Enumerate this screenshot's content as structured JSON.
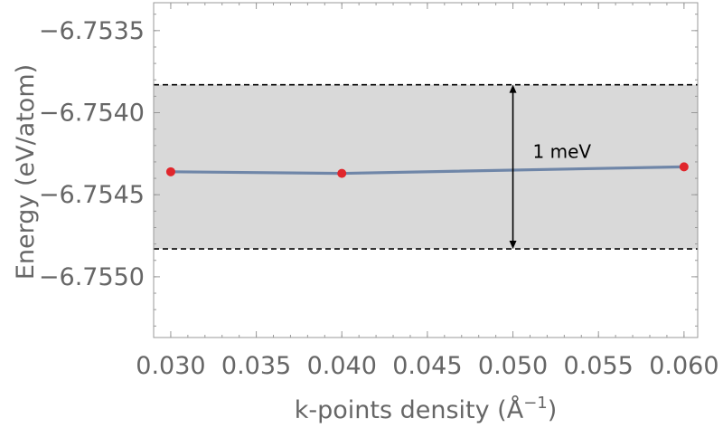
{
  "chart_data": {
    "type": "line",
    "title": "",
    "xlabel": {
      "base": "k-points density (Å",
      "sup": "−1",
      "close": ")"
    },
    "ylabel": "Energy (eV/atom)",
    "xlim": [
      0.029,
      0.0608
    ],
    "ylim": [
      -6.75537,
      -6.75333
    ],
    "xticks": [
      0.03,
      0.035,
      0.04,
      0.045,
      0.05,
      0.055,
      0.06
    ],
    "xtick_labels": [
      "0.030",
      "0.035",
      "0.040",
      "0.045",
      "0.050",
      "0.055",
      "0.060"
    ],
    "yticks": [
      -6.7535,
      -6.754,
      -6.7545,
      -6.755
    ],
    "ytick_labels": [
      "−6.7535",
      "−6.7540",
      "−6.7545",
      "−6.7550"
    ],
    "series": [
      {
        "x": [
          0.03,
          0.04,
          0.06
        ],
        "y": [
          -6.75436,
          -6.75437,
          -6.75433
        ],
        "line_color": "#6f86a8",
        "marker_color": "#e0262c"
      }
    ],
    "band": {
      "y_low": -6.75483,
      "y_high": -6.75383,
      "fill_color": "#d9d9d9",
      "line_style": "dashed"
    },
    "annotation": {
      "text": "1 meV",
      "x": 0.05,
      "y_low": -6.75483,
      "y_high": -6.75383
    },
    "frame": "box",
    "grid": false,
    "legend": "none"
  }
}
